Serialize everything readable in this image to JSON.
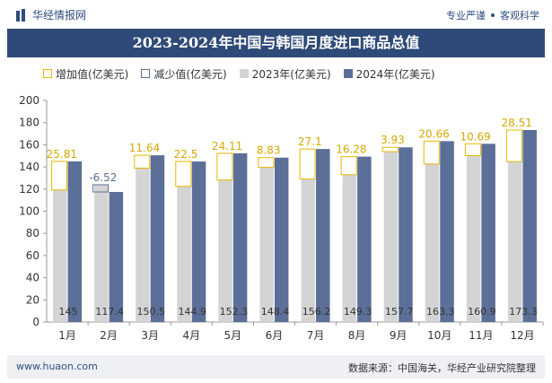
{
  "header": {
    "brand": "华经情报网",
    "slogan_left": "专业严谨",
    "slogan_right": "客观科学"
  },
  "footer": {
    "website": "www.huaon.com",
    "source": "数据来源：中国海关，华经产业研究院整理"
  },
  "colors": {
    "inc": "#e6b800",
    "dec": "#5a6f94",
    "y2023": "#d4d4d4",
    "y2024": "#5b6f98",
    "title_bg": "#2e4a78"
  },
  "chart_data": {
    "type": "bar",
    "title": "2023-2024年中国与韩国月度进口商品总值",
    "categories": [
      "1月",
      "2月",
      "3月",
      "4月",
      "5月",
      "6月",
      "7月",
      "8月",
      "9月",
      "10月",
      "11月",
      "12月"
    ],
    "series": [
      {
        "name": "2023年(亿美元)",
        "values": [
          119.2,
          123.9,
          138.9,
          122.4,
          128.2,
          139.6,
          129.1,
          133.0,
          153.8,
          142.6,
          150.2,
          144.8
        ]
      },
      {
        "name": "2024年(亿美元)",
        "values": [
          145.0,
          117.4,
          150.5,
          144.9,
          152.3,
          148.4,
          156.2,
          149.3,
          157.7,
          163.3,
          160.9,
          173.3
        ]
      }
    ],
    "change": {
      "increase_name": "增加值(亿美元)",
      "decrease_name": "减少值(亿美元)",
      "values": [
        25.81,
        -6.52,
        11.64,
        22.5,
        24.11,
        8.83,
        27.1,
        16.28,
        3.93,
        20.66,
        10.69,
        28.51
      ]
    },
    "ylim": [
      0,
      200
    ],
    "yticks": [
      0,
      20,
      40,
      60,
      80,
      100,
      120,
      140,
      160,
      180,
      200
    ],
    "xlabel": "",
    "ylabel": "",
    "grid": false,
    "legend": "top-left"
  }
}
